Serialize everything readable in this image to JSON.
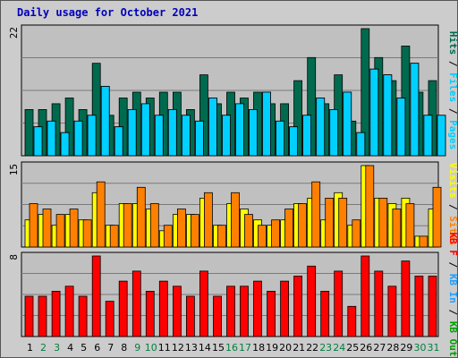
{
  "title": "Daily usage for October 2021",
  "colors": {
    "hits": "#006a4e",
    "files": "#00ccff",
    "pages": "#00d0ff",
    "sites": "#ff8000",
    "visits": "#ffff00",
    "kbin": "#1fa0ff",
    "kbout": "#00a000",
    "kbf": "#ff0000",
    "weekday_label": "#000000",
    "weekend_label": "#008040",
    "bar_outline": "#000000"
  },
  "chart_data": [
    {
      "type": "bar",
      "panel": "hits-files-pages",
      "categories": [
        "1",
        "2",
        "3",
        "4",
        "5",
        "6",
        "7",
        "8",
        "9",
        "10",
        "11",
        "12",
        "13",
        "14",
        "15",
        "16",
        "17",
        "18",
        "19",
        "20",
        "21",
        "22",
        "23",
        "24",
        "25",
        "26",
        "27",
        "28",
        "29",
        "30",
        "31"
      ],
      "weekend": [
        "2",
        "3",
        "9",
        "10",
        "16",
        "17",
        "23",
        "24",
        "30",
        "31"
      ],
      "ymax_label": "22",
      "ylim": [
        0,
        22
      ],
      "series": [
        {
          "name": "Hits",
          "color": "hits",
          "values": [
            8,
            8,
            9,
            10,
            8,
            16,
            7,
            10,
            11,
            10,
            11,
            11,
            8,
            14,
            9,
            11,
            10,
            11,
            9,
            9,
            13,
            17,
            9,
            14,
            6,
            22,
            17,
            13,
            19,
            11,
            13
          ]
        },
        {
          "name": "Files",
          "color": "files",
          "values": [
            5,
            6,
            4,
            6,
            7,
            12,
            5,
            8,
            9,
            7,
            8,
            7,
            6,
            10,
            7,
            9,
            8,
            11,
            6,
            5,
            7,
            10,
            8,
            11,
            4,
            15,
            14,
            10,
            16,
            7,
            7
          ]
        },
        {
          "name": "Pages",
          "color": "pages",
          "values": [
            5,
            6,
            4,
            6,
            7,
            12,
            5,
            8,
            9,
            7,
            8,
            7,
            6,
            10,
            7,
            9,
            8,
            11,
            6,
            5,
            7,
            10,
            8,
            11,
            4,
            15,
            14,
            10,
            16,
            7,
            7
          ]
        }
      ],
      "legend": [
        {
          "text": "Hits",
          "color": "hits"
        },
        {
          "text": "Files",
          "color": "files"
        },
        {
          "text": "Pages",
          "color": "pages"
        }
      ],
      "legend_separator": " / "
    },
    {
      "type": "bar",
      "panel": "visits-sites",
      "categories": [
        "1",
        "2",
        "3",
        "4",
        "5",
        "6",
        "7",
        "8",
        "9",
        "10",
        "11",
        "12",
        "13",
        "14",
        "15",
        "16",
        "17",
        "18",
        "19",
        "20",
        "21",
        "22",
        "23",
        "24",
        "25",
        "26",
        "27",
        "28",
        "29",
        "30",
        "31"
      ],
      "ymax_label": "15",
      "ylim": [
        0,
        15
      ],
      "series": [
        {
          "name": "Visits",
          "color": "visits",
          "values": [
            5,
            6,
            4,
            6,
            5,
            10,
            4,
            8,
            8,
            7,
            3,
            6,
            6,
            9,
            4,
            8,
            7,
            5,
            4,
            5,
            8,
            9,
            5,
            10,
            4,
            15,
            9,
            8,
            9,
            2,
            7
          ]
        },
        {
          "name": "Sites",
          "color": "sites",
          "values": [
            8,
            7,
            6,
            7,
            5,
            12,
            4,
            8,
            11,
            8,
            4,
            7,
            6,
            10,
            4,
            10,
            6,
            4,
            5,
            7,
            8,
            12,
            9,
            9,
            5,
            15,
            9,
            7,
            8,
            2,
            11
          ]
        }
      ],
      "legend": [
        {
          "text": "Visits",
          "color": "visits"
        },
        {
          "text": "Sites",
          "color": "sites"
        }
      ],
      "legend_separator": " / "
    },
    {
      "type": "bar",
      "panel": "kbytes",
      "categories": [
        "1",
        "2",
        "3",
        "4",
        "5",
        "6",
        "7",
        "8",
        "9",
        "10",
        "11",
        "12",
        "13",
        "14",
        "15",
        "16",
        "17",
        "18",
        "19",
        "20",
        "21",
        "22",
        "23",
        "24",
        "25",
        "26",
        "27",
        "28",
        "29",
        "30",
        "31"
      ],
      "ymax_label": "8",
      "ylim": [
        0,
        8
      ],
      "series": [
        {
          "name": "KB F",
          "color": "kbf",
          "values": [
            4,
            4,
            4.5,
            5,
            4,
            8,
            3.5,
            5.5,
            6.5,
            4.5,
            5.5,
            5,
            4,
            6.5,
            4,
            5,
            5,
            5.5,
            4.5,
            5.5,
            6,
            7,
            4.5,
            6.5,
            3,
            8,
            6.5,
            5,
            7.5,
            6,
            6
          ]
        }
      ],
      "legend": [
        {
          "text": "KB F",
          "color": "kbf"
        },
        {
          "text": "KB In",
          "color": "kbin"
        },
        {
          "text": "KB Out",
          "color": "kbout"
        }
      ],
      "legend_separator": " / "
    }
  ]
}
